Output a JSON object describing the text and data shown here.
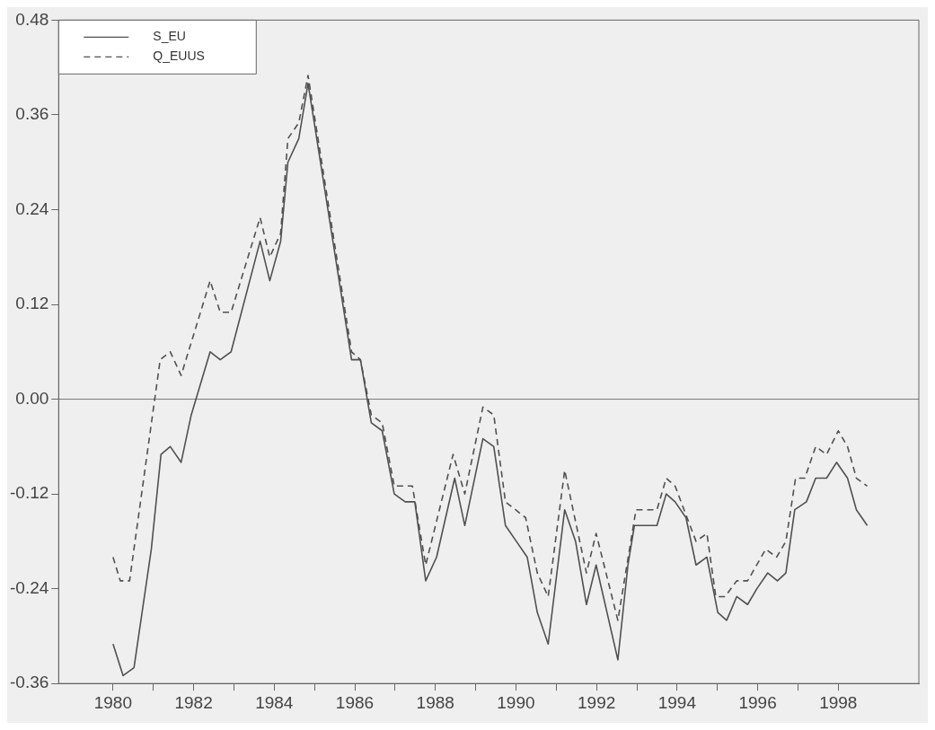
{
  "chart_data": {
    "type": "line",
    "xlim": [
      1978.65,
      2000.0
    ],
    "xticks": [
      {
        "value": 1980,
        "label": "1980"
      },
      {
        "value": 1981,
        "label": null
      },
      {
        "value": 1982,
        "label": "1982"
      },
      {
        "value": 1983,
        "label": null
      },
      {
        "value": 1984,
        "label": "1984"
      },
      {
        "value": 1985,
        "label": null
      },
      {
        "value": 1986,
        "label": "1986"
      },
      {
        "value": 1987,
        "label": null
      },
      {
        "value": 1988,
        "label": "1988"
      },
      {
        "value": 1989,
        "label": null
      },
      {
        "value": 1990,
        "label": "1990"
      },
      {
        "value": 1991,
        "label": null
      },
      {
        "value": 1992,
        "label": "1992"
      },
      {
        "value": 1993,
        "label": null
      },
      {
        "value": 1994,
        "label": "1994"
      },
      {
        "value": 1995,
        "label": null
      },
      {
        "value": 1996,
        "label": "1996"
      },
      {
        "value": 1997,
        "label": null
      },
      {
        "value": 1998,
        "label": "1998"
      }
    ],
    "ylim": [
      -0.36,
      0.48
    ],
    "yticks": [
      {
        "value": -0.36,
        "label": "-0.36"
      },
      {
        "value": -0.24,
        "label": "-0.24"
      },
      {
        "value": -0.12,
        "label": "-0.12"
      },
      {
        "value": 0,
        "label": "0.00"
      },
      {
        "value": 0.12,
        "label": "0.12"
      },
      {
        "value": 0.24,
        "label": "0.24"
      },
      {
        "value": 0.36,
        "label": "0.36"
      },
      {
        "value": 0.48,
        "label": "0.48"
      }
    ],
    "grid": false,
    "legend": "top left",
    "ref_lines": [
      {
        "axis": "y",
        "value": 0,
        "color": "#777777"
      }
    ],
    "series": [
      {
        "name": "S_EU",
        "color": "#505050",
        "line_style": "solid",
        "x": [
          1980.0,
          1980.25,
          1980.52,
          1980.95,
          1981.19,
          1981.42,
          1981.69,
          1981.94,
          1982.41,
          1982.66,
          1982.93,
          1983.65,
          1983.89,
          1984.16,
          1984.34,
          1984.61,
          1984.84,
          1985.92,
          1986.14,
          1986.41,
          1986.68,
          1986.98,
          1987.25,
          1987.49,
          1987.76,
          1988.03,
          1988.48,
          1988.73,
          1989.18,
          1989.45,
          1989.74,
          1990.01,
          1990.28,
          1990.53,
          1990.8,
          1991.21,
          1991.48,
          1991.75,
          1991.99,
          1992.53,
          1992.78,
          1992.94,
          1993.5,
          1993.73,
          1993.95,
          1994.22,
          1994.47,
          1994.74,
          1995.01,
          1995.23,
          1995.48,
          1995.75,
          1995.98,
          1996.25,
          1996.49,
          1996.7,
          1996.92,
          1997.21,
          1997.44,
          1997.71,
          1997.96,
          1998.23,
          1998.45,
          1998.72
        ],
        "values": [
          -0.31,
          -0.35,
          -0.34,
          -0.19,
          -0.07,
          -0.06,
          -0.08,
          -0.02,
          0.06,
          0.05,
          0.06,
          0.2,
          0.15,
          0.2,
          0.3,
          0.33,
          0.4,
          0.05,
          0.05,
          -0.03,
          -0.04,
          -0.12,
          -0.13,
          -0.13,
          -0.23,
          -0.2,
          -0.1,
          -0.16,
          -0.05,
          -0.06,
          -0.16,
          -0.18,
          -0.2,
          -0.27,
          -0.31,
          -0.14,
          -0.18,
          -0.26,
          -0.21,
          -0.33,
          -0.21,
          -0.16,
          -0.16,
          -0.12,
          -0.13,
          -0.15,
          -0.21,
          -0.2,
          -0.27,
          -0.28,
          -0.25,
          -0.26,
          -0.24,
          -0.22,
          -0.23,
          -0.22,
          -0.14,
          -0.13,
          -0.1,
          -0.1,
          -0.08,
          -0.1,
          -0.14,
          -0.16
        ]
      },
      {
        "name": "Q_EUUS",
        "color": "#505050",
        "line_style": "dashed",
        "x": [
          1980.0,
          1980.18,
          1980.41,
          1981.17,
          1981.42,
          1981.69,
          1982.41,
          1982.66,
          1982.93,
          1983.65,
          1983.89,
          1984.16,
          1984.34,
          1984.61,
          1984.84,
          1985.92,
          1986.14,
          1986.41,
          1986.68,
          1986.98,
          1987.43,
          1987.76,
          1988.44,
          1988.73,
          1989.18,
          1989.45,
          1989.74,
          1990.24,
          1990.53,
          1990.8,
          1991.21,
          1991.75,
          1991.99,
          1992.53,
          1992.98,
          1993.5,
          1993.73,
          1993.95,
          1994.47,
          1994.74,
          1994.96,
          1995.19,
          1995.48,
          1995.75,
          1996.2,
          1996.47,
          1996.7,
          1996.94,
          1997.17,
          1997.44,
          1997.71,
          1998.0,
          1998.23,
          1998.45,
          1998.72
        ],
        "values": [
          -0.2,
          -0.23,
          -0.23,
          0.05,
          0.06,
          0.03,
          0.15,
          0.11,
          0.11,
          0.23,
          0.18,
          0.21,
          0.33,
          0.35,
          0.41,
          0.06,
          0.05,
          -0.02,
          -0.03,
          -0.11,
          -0.11,
          -0.21,
          -0.07,
          -0.12,
          -0.01,
          -0.02,
          -0.13,
          -0.15,
          -0.22,
          -0.25,
          -0.09,
          -0.22,
          -0.17,
          -0.28,
          -0.14,
          -0.14,
          -0.1,
          -0.11,
          -0.18,
          -0.17,
          -0.25,
          -0.25,
          -0.23,
          -0.23,
          -0.19,
          -0.2,
          -0.18,
          -0.1,
          -0.1,
          -0.06,
          -0.07,
          -0.04,
          -0.06,
          -0.1,
          -0.11
        ]
      }
    ]
  }
}
